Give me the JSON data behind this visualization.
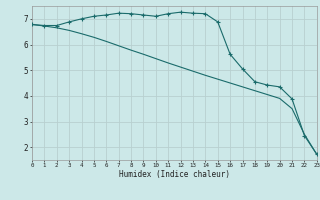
{
  "xlabel": "Humidex (Indice chaleur)",
  "bg_color": "#cce8e8",
  "grid_color": "#b8d0d0",
  "line_color": "#1a6b6b",
  "line1_x": [
    0,
    1,
    2,
    3,
    4,
    5,
    6,
    7,
    8,
    9,
    10,
    11,
    12,
    13,
    14,
    15,
    16,
    17,
    18,
    19,
    20,
    21,
    22,
    23
  ],
  "line1_y": [
    6.78,
    6.74,
    6.74,
    6.88,
    7.0,
    7.1,
    7.15,
    7.22,
    7.2,
    7.15,
    7.1,
    7.2,
    7.26,
    7.22,
    7.2,
    6.88,
    5.62,
    5.05,
    4.55,
    4.42,
    4.35,
    3.88,
    2.45,
    1.72
  ],
  "line2_x": [
    0,
    1,
    2,
    3,
    4,
    5,
    6,
    7,
    8,
    9,
    10,
    11,
    12,
    13,
    14,
    15,
    16,
    17,
    18,
    19,
    20,
    21,
    22,
    23
  ],
  "line2_y": [
    6.78,
    6.72,
    6.65,
    6.55,
    6.42,
    6.28,
    6.12,
    5.95,
    5.78,
    5.62,
    5.45,
    5.28,
    5.12,
    4.96,
    4.8,
    4.65,
    4.5,
    4.35,
    4.2,
    4.05,
    3.9,
    3.5,
    2.5,
    1.72
  ],
  "xlim": [
    0,
    23
  ],
  "ylim": [
    1.5,
    7.5
  ],
  "yticks": [
    2,
    3,
    4,
    5,
    6,
    7
  ],
  "xticks": [
    0,
    1,
    2,
    3,
    4,
    5,
    6,
    7,
    8,
    9,
    10,
    11,
    12,
    13,
    14,
    15,
    16,
    17,
    18,
    19,
    20,
    21,
    22,
    23
  ],
  "marker": "+"
}
